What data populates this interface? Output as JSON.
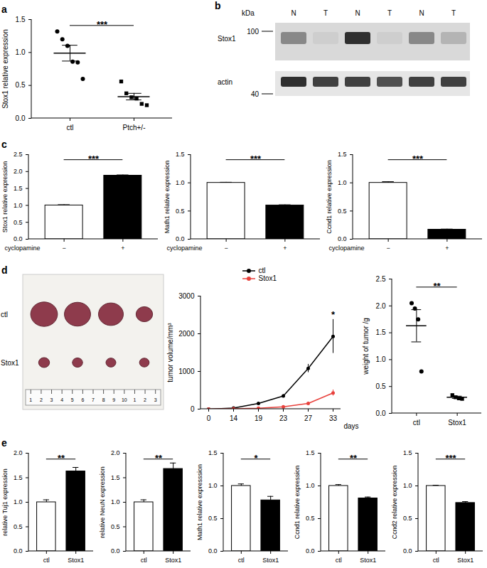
{
  "chart_data": [
    {
      "panel": "a",
      "type": "scatter",
      "categories": [
        "ctl",
        "Ptch+/-"
      ],
      "groups": [
        {
          "values": [
            1.32,
            1.2,
            1.1,
            0.86,
            0.85,
            0.6
          ],
          "mean": 0.99,
          "error": 0.12,
          "marker": "circle"
        },
        {
          "values": [
            0.56,
            0.38,
            0.32,
            0.3,
            0.22,
            0.2
          ],
          "mean": 0.33,
          "error": 0.05,
          "marker": "square"
        }
      ],
      "color": "#000000",
      "ylabel": "Stox1 relative expression",
      "ylim": [
        0,
        1.5
      ],
      "yticks": [
        {
          "value": 0,
          "label": "0.0"
        },
        0.5,
        {
          "value": 1,
          "label": "1.0"
        },
        1.5
      ],
      "annotation": "***"
    },
    {
      "panel": "b",
      "type": "blot",
      "unit": "kDa",
      "lanes": [
        "N",
        "T",
        "N",
        "T",
        "N",
        "T"
      ],
      "rows": [
        {
          "label": "Stox1",
          "marker": 100,
          "intensity": [
            0.55,
            0.3,
            0.85,
            0.3,
            0.55,
            0.4
          ]
        },
        {
          "label": "actin",
          "marker": 40,
          "intensity": [
            0.85,
            0.8,
            0.8,
            0.75,
            0.8,
            0.8
          ]
        }
      ]
    },
    {
      "panel": "c",
      "type": "bar",
      "categories": [
        "−",
        "+"
      ],
      "xlabel": "cyclopamine",
      "values": [
        1.0,
        1.88
      ],
      "errors": [
        0.02,
        0.02
      ],
      "colors": [
        "#ffffff",
        "#000000"
      ],
      "ylabel": "Stox1 relative expression",
      "ylim": [
        0,
        2.5
      ],
      "yticks": [
        {
          "value": 0,
          "label": "0.0"
        },
        0.5,
        {
          "value": 1,
          "label": "1.0"
        },
        1.5,
        {
          "value": 2,
          "label": "2.0"
        },
        2.5
      ],
      "annotation": "***"
    },
    {
      "type": "bar",
      "categories": [
        "−",
        "+"
      ],
      "xlabel": "cyclopamine",
      "values": [
        1.0,
        0.6
      ],
      "errors": [
        0.01,
        0.01
      ],
      "colors": [
        "#ffffff",
        "#000000"
      ],
      "ylabel": "Math1 relative expression",
      "ylim": [
        0,
        1.5
      ],
      "yticks": [
        {
          "value": 0,
          "label": "0.0"
        },
        0.5,
        {
          "value": 1,
          "label": "1.0"
        },
        1.5
      ],
      "annotation": "***"
    },
    {
      "type": "bar",
      "categories": [
        "−",
        "+"
      ],
      "xlabel": "cyclopamine",
      "values": [
        1.0,
        0.17
      ],
      "errors": [
        0.02,
        0.01
      ],
      "colors": [
        "#ffffff",
        "#000000"
      ],
      "ylabel": "Ccnd1 relative expression",
      "ylim": [
        0,
        1.5
      ],
      "yticks": [
        {
          "value": 0,
          "label": "0.0"
        },
        0.5,
        {
          "value": 1,
          "label": "1.0"
        },
        1.5
      ],
      "annotation": "***"
    },
    {
      "panel": "d",
      "type": "photo",
      "rows": [
        "ctl",
        "Stox1"
      ],
      "color": "#8e3b4c",
      "ruler_labels": [
        "1",
        "2",
        "3",
        "4",
        "5",
        "6",
        "7",
        "8",
        "9",
        "10",
        "1",
        "2",
        "3"
      ]
    },
    {
      "type": "line",
      "categories": [
        "0",
        "14",
        "19",
        "23",
        "27",
        "33"
      ],
      "xlabel": "days",
      "ylabel": "tumor volume/mm³",
      "ylim": [
        0,
        3000
      ],
      "yticks": [
        0,
        1000,
        2000,
        3000
      ],
      "series": [
        {
          "name": "ctl",
          "color": "#000000",
          "marker": "circle",
          "values": [
            0,
            30,
            150,
            350,
            1080,
            1930
          ],
          "errors": [
            0,
            10,
            25,
            40,
            110,
            450
          ]
        },
        {
          "name": "Stox1",
          "color": "#e8413c",
          "marker": "circle",
          "values": [
            0,
            10,
            25,
            60,
            150,
            430
          ],
          "errors": [
            0,
            3,
            8,
            15,
            40,
            80
          ]
        }
      ],
      "legend": "top",
      "annotation": "*"
    },
    {
      "type": "scatter",
      "categories": [
        "ctl",
        "Stox1"
      ],
      "groups": [
        {
          "values": [
            2.05,
            1.95,
            1.75,
            0.78
          ],
          "mean": 1.63,
          "error": 0.3,
          "marker": "circle"
        },
        {
          "values": [
            0.34,
            0.3,
            0.28,
            0.27
          ],
          "mean": 0.3,
          "error": 0.02,
          "marker": "square"
        }
      ],
      "color": "#000000",
      "ylabel": "weight of tumor /g",
      "ylim": [
        0,
        2.5
      ],
      "yticks": [
        {
          "value": 0,
          "label": "0.0"
        },
        0.5,
        {
          "value": 1,
          "label": "1.0"
        },
        1.5,
        {
          "value": 2,
          "label": "2.0"
        },
        2.5
      ],
      "annotation": "**"
    },
    {
      "panel": "e",
      "type": "bar",
      "categories": [
        "ctl",
        "Stox1"
      ],
      "values": [
        1.0,
        1.63
      ],
      "errors": [
        0.05,
        0.08
      ],
      "colors": [
        "#ffffff",
        "#000000"
      ],
      "ylabel": "relative Tuj1 expression",
      "ylim": [
        0,
        2
      ],
      "yticks": [
        {
          "value": 0,
          "label": "0.0"
        },
        0.5,
        {
          "value": 1,
          "label": "1.0"
        },
        1.5,
        {
          "value": 2,
          "label": "2.0"
        }
      ],
      "annotation": "**"
    },
    {
      "type": "bar",
      "categories": [
        "ctl",
        "Stox1"
      ],
      "values": [
        1.0,
        1.68
      ],
      "errors": [
        0.05,
        0.12
      ],
      "colors": [
        "#ffffff",
        "#000000"
      ],
      "ylabel": "relative NeuN expression",
      "ylim": [
        0,
        2
      ],
      "yticks": [
        {
          "value": 0,
          "label": "0.0"
        },
        0.5,
        {
          "value": 1,
          "label": "1.0"
        },
        1.5,
        {
          "value": 2,
          "label": "2.0"
        }
      ],
      "annotation": "**"
    },
    {
      "type": "bar",
      "categories": [
        "ctl",
        "Stox1"
      ],
      "values": [
        1.0,
        0.78
      ],
      "errors": [
        0.03,
        0.06
      ],
      "colors": [
        "#ffffff",
        "#000000"
      ],
      "ylabel": "Math1 relative expresssion",
      "ylim": [
        0,
        1.5
      ],
      "yticks": [
        {
          "value": 0,
          "label": "0.0"
        },
        0.5,
        {
          "value": 1,
          "label": "1.0"
        },
        1.5
      ],
      "annotation": "*"
    },
    {
      "type": "bar",
      "categories": [
        "ctl",
        "Stox1"
      ],
      "values": [
        1.0,
        0.81
      ],
      "errors": [
        0.02,
        0.02
      ],
      "colors": [
        "#ffffff",
        "#000000"
      ],
      "ylabel": "Ccnd1 relative expression",
      "ylim": [
        0,
        1.5
      ],
      "yticks": [
        {
          "value": 0,
          "label": "0.0"
        },
        0.5,
        {
          "value": 1,
          "label": "1.0"
        },
        1.5
      ],
      "annotation": "**"
    },
    {
      "type": "bar",
      "categories": [
        "ctl",
        "Stox1"
      ],
      "values": [
        1.0,
        0.74
      ],
      "errors": [
        0.01,
        0.02
      ],
      "colors": [
        "#ffffff",
        "#000000"
      ],
      "ylabel": "Ccnd2 relative expression",
      "ylim": [
        0,
        1.5
      ],
      "yticks": [
        {
          "value": 0,
          "label": "0.0"
        },
        0.5,
        {
          "value": 1,
          "label": "1.0"
        },
        1.5
      ],
      "annotation": "***"
    }
  ]
}
